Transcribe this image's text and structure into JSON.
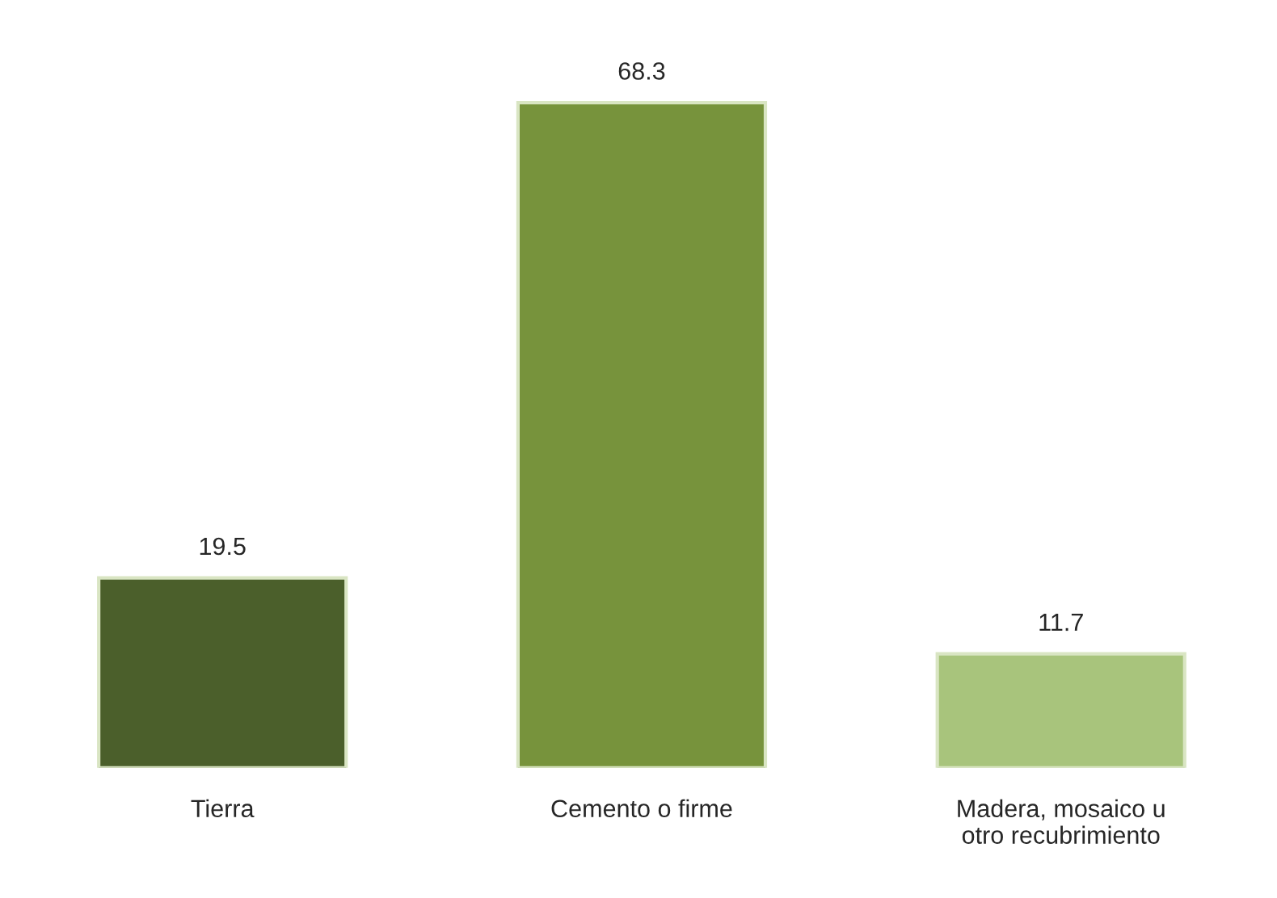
{
  "chart_data": {
    "type": "bar",
    "categories": [
      "Tierra",
      "Cemento o firme",
      "Madera, mosaico u\notro recubrimiento"
    ],
    "values": [
      19.5,
      68.3,
      11.7
    ],
    "colors": [
      "#4b5f2b",
      "#77933c",
      "#a8c47c"
    ],
    "data_labels": true,
    "grid": false,
    "legend": false
  }
}
